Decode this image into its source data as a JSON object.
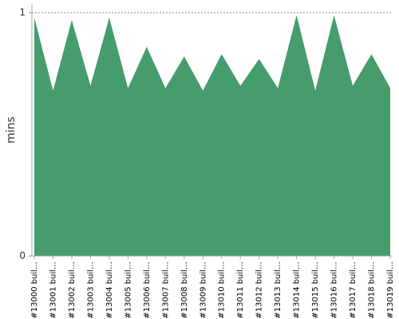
{
  "chart_data": {
    "type": "area",
    "y_label": "mins",
    "categories": [
      "#13000 buil…",
      "#13001 buil…",
      "#13002 buil…",
      "#13003 buil…",
      "#13004 buil…",
      "#13005 buil…",
      "#13006 buil…",
      "#13007 buil…",
      "#13008 buil…",
      "#13009 buil…",
      "#13010 buil…",
      "#13011 buil…",
      "#13012 buil…",
      "#13013 buil…",
      "#13014 buil…",
      "#13015 buil…",
      "#13016 buil…",
      "#13017 buil…",
      "#13018 buil…",
      "#13019 buil…"
    ],
    "values": [
      0.98,
      0.68,
      0.97,
      0.7,
      0.98,
      0.69,
      0.86,
      0.69,
      0.82,
      0.68,
      0.83,
      0.7,
      0.81,
      0.69,
      0.99,
      0.68,
      0.99,
      0.7,
      0.83,
      0.69
    ],
    "color": "#469c6d",
    "ylim": [
      0,
      1
    ],
    "yticks": [
      0,
      1
    ],
    "grid": true
  }
}
